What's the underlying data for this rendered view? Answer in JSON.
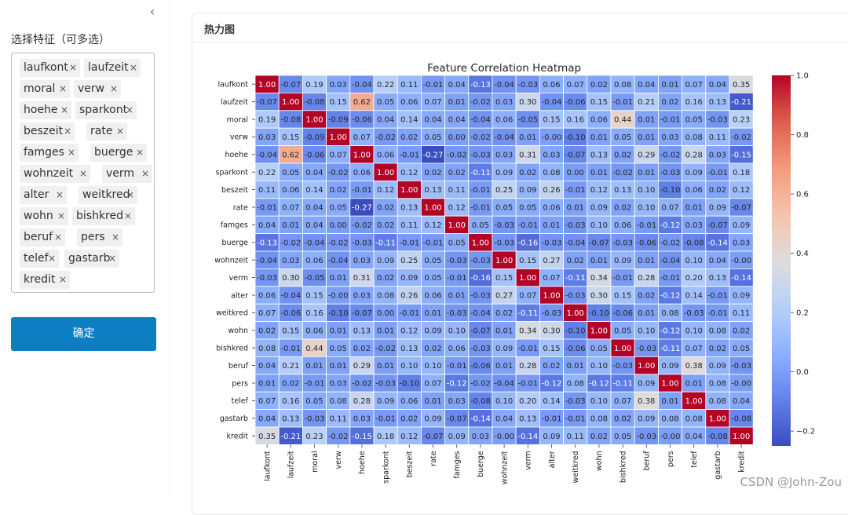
{
  "sidebar": {
    "label": "选择特征（可多选）",
    "tags": [
      "laufkont",
      "laufzeit",
      "moral",
      "verw",
      "hoehe",
      "sparkont",
      "beszeit",
      "rate",
      "famges",
      "buerge",
      "wohnzeit",
      "verm",
      "alter",
      "weitkred",
      "wohn",
      "bishkred",
      "beruf",
      "pers",
      "telef",
      "gastarb",
      "kredit"
    ],
    "remove_glyph": "×",
    "confirm_label": "确定",
    "collapse_glyph": "‹"
  },
  "card": {
    "title": "热力图"
  },
  "watermark": "CSDN @John-Zou",
  "chart_data": {
    "type": "heatmap",
    "title": "Feature Correlation Heatmap",
    "labels": [
      "laufkont",
      "laufzeit",
      "moral",
      "verw",
      "hoehe",
      "sparkont",
      "beszeit",
      "rate",
      "famges",
      "buerge",
      "wohnzeit",
      "verm",
      "alter",
      "weitkred",
      "wohn",
      "bishkred",
      "beruf",
      "pers",
      "telef",
      "gastarb",
      "kredit"
    ],
    "values": [
      [
        "1.00",
        "-0.07",
        "0.19",
        "0.03",
        "-0.04",
        "0.22",
        "0.11",
        "-0.01",
        "0.04",
        "-0.13",
        "-0.04",
        "-0.03",
        "0.06",
        "0.07",
        "0.02",
        "0.08",
        "0.04",
        "0.01",
        "0.07",
        "0.04",
        "0.35"
      ],
      [
        "-0.07",
        "1.00",
        "-0.08",
        "0.15",
        "0.62",
        "0.05",
        "0.06",
        "0.07",
        "0.01",
        "-0.02",
        "0.03",
        "0.30",
        "-0.04",
        "-0.06",
        "0.15",
        "-0.01",
        "0.21",
        "0.02",
        "0.16",
        "0.13",
        "-0.21"
      ],
      [
        "0.19",
        "-0.08",
        "1.00",
        "-0.09",
        "-0.06",
        "0.04",
        "0.14",
        "0.04",
        "0.04",
        "-0.04",
        "0.06",
        "-0.05",
        "0.15",
        "0.16",
        "0.06",
        "0.44",
        "0.01",
        "-0.01",
        "0.05",
        "-0.03",
        "0.23"
      ],
      [
        "0.03",
        "0.15",
        "-0.09",
        "1.00",
        "0.07",
        "-0.02",
        "0.02",
        "0.05",
        "0.00",
        "-0.02",
        "-0.04",
        "0.01",
        "-0.00",
        "-0.10",
        "0.01",
        "0.05",
        "0.01",
        "0.03",
        "0.08",
        "0.11",
        "-0.02"
      ],
      [
        "-0.04",
        "0.62",
        "-0.06",
        "0.07",
        "1.00",
        "0.06",
        "-0.01",
        "-0.27",
        "-0.02",
        "-0.03",
        "0.03",
        "0.31",
        "0.03",
        "-0.07",
        "0.13",
        "0.02",
        "0.29",
        "-0.02",
        "0.28",
        "0.03",
        "-0.15"
      ],
      [
        "0.22",
        "0.05",
        "0.04",
        "-0.02",
        "0.06",
        "1.00",
        "0.12",
        "0.02",
        "0.02",
        "-0.11",
        "0.09",
        "0.02",
        "0.08",
        "0.00",
        "0.01",
        "-0.02",
        "0.01",
        "-0.03",
        "0.09",
        "-0.01",
        "0.18"
      ],
      [
        "0.11",
        "0.06",
        "0.14",
        "0.02",
        "-0.01",
        "0.12",
        "1.00",
        "0.13",
        "0.11",
        "-0.01",
        "0.25",
        "0.09",
        "0.26",
        "-0.01",
        "0.12",
        "0.13",
        "0.10",
        "-0.10",
        "0.06",
        "0.02",
        "0.12"
      ],
      [
        "-0.01",
        "0.07",
        "0.04",
        "0.05",
        "-0.27",
        "0.02",
        "0.13",
        "1.00",
        "0.12",
        "-0.01",
        "0.05",
        "0.05",
        "0.06",
        "0.01",
        "0.09",
        "0.02",
        "0.10",
        "0.07",
        "0.01",
        "0.09",
        "-0.07"
      ],
      [
        "0.04",
        "0.01",
        "0.04",
        "0.00",
        "-0.02",
        "0.02",
        "0.11",
        "0.12",
        "1.00",
        "0.05",
        "-0.03",
        "-0.01",
        "0.01",
        "-0.03",
        "0.10",
        "0.06",
        "-0.01",
        "-0.12",
        "0.03",
        "-0.07",
        "0.09"
      ],
      [
        "-0.13",
        "-0.02",
        "-0.04",
        "-0.02",
        "-0.03",
        "-0.11",
        "-0.01",
        "-0.01",
        "0.05",
        "1.00",
        "-0.03",
        "-0.16",
        "-0.03",
        "-0.04",
        "-0.07",
        "-0.03",
        "-0.06",
        "-0.02",
        "-0.08",
        "-0.14",
        "0.03"
      ],
      [
        "-0.04",
        "0.03",
        "0.06",
        "-0.04",
        "0.03",
        "0.09",
        "0.25",
        "0.05",
        "-0.03",
        "-0.03",
        "1.00",
        "0.15",
        "0.27",
        "0.02",
        "0.01",
        "0.09",
        "0.01",
        "-0.04",
        "0.10",
        "0.04",
        "-0.00"
      ],
      [
        "-0.03",
        "0.30",
        "-0.05",
        "0.01",
        "0.31",
        "0.02",
        "0.09",
        "0.05",
        "-0.01",
        "-0.16",
        "0.15",
        "1.00",
        "0.07",
        "-0.11",
        "0.34",
        "-0.01",
        "0.28",
        "-0.01",
        "0.20",
        "0.13",
        "-0.14"
      ],
      [
        "0.06",
        "-0.04",
        "0.15",
        "-0.00",
        "0.03",
        "0.08",
        "0.26",
        "0.06",
        "0.01",
        "-0.03",
        "0.27",
        "0.07",
        "1.00",
        "-0.03",
        "0.30",
        "0.15",
        "0.02",
        "-0.12",
        "0.14",
        "-0.01",
        "0.09"
      ],
      [
        "0.07",
        "-0.06",
        "0.16",
        "-0.10",
        "-0.07",
        "0.00",
        "-0.01",
        "0.01",
        "-0.03",
        "-0.04",
        "0.02",
        "-0.11",
        "-0.03",
        "1.00",
        "-0.10",
        "-0.06",
        "0.01",
        "0.08",
        "-0.03",
        "-0.01",
        "0.11"
      ],
      [
        "0.02",
        "0.15",
        "0.06",
        "0.01",
        "0.13",
        "0.01",
        "0.12",
        "0.09",
        "0.10",
        "-0.07",
        "0.01",
        "0.34",
        "0.30",
        "-0.10",
        "1.00",
        "0.05",
        "0.10",
        "-0.12",
        "0.10",
        "0.08",
        "0.02"
      ],
      [
        "0.08",
        "-0.01",
        "0.44",
        "0.05",
        "0.02",
        "-0.02",
        "0.13",
        "0.02",
        "0.06",
        "-0.03",
        "0.09",
        "-0.01",
        "0.15",
        "-0.06",
        "0.05",
        "1.00",
        "-0.03",
        "-0.11",
        "0.07",
        "0.02",
        "0.05"
      ],
      [
        "0.04",
        "0.21",
        "0.01",
        "0.01",
        "0.29",
        "0.01",
        "0.10",
        "0.10",
        "-0.01",
        "-0.06",
        "0.01",
        "0.28",
        "0.02",
        "0.01",
        "0.10",
        "-0.03",
        "1.00",
        "0.09",
        "0.38",
        "0.09",
        "-0.03"
      ],
      [
        "0.01",
        "0.02",
        "-0.01",
        "0.03",
        "-0.02",
        "-0.03",
        "-0.10",
        "0.07",
        "-0.12",
        "-0.02",
        "-0.04",
        "-0.01",
        "-0.12",
        "0.08",
        "-0.12",
        "-0.11",
        "0.09",
        "1.00",
        "0.01",
        "0.08",
        "-0.00"
      ],
      [
        "0.07",
        "0.16",
        "0.05",
        "0.08",
        "0.28",
        "0.09",
        "0.06",
        "0.01",
        "0.03",
        "-0.08",
        "0.10",
        "0.20",
        "0.14",
        "-0.03",
        "0.10",
        "0.07",
        "0.38",
        "0.01",
        "1.00",
        "0.08",
        "0.04"
      ],
      [
        "0.04",
        "0.13",
        "-0.03",
        "0.11",
        "0.03",
        "-0.01",
        "0.02",
        "0.09",
        "-0.07",
        "-0.14",
        "0.04",
        "0.13",
        "-0.01",
        "-0.01",
        "0.08",
        "0.02",
        "0.09",
        "0.08",
        "0.08",
        "1.00",
        "-0.08"
      ],
      [
        "0.35",
        "-0.21",
        "0.23",
        "-0.02",
        "-0.15",
        "0.18",
        "0.12",
        "-0.07",
        "0.09",
        "0.03",
        "-0.00",
        "-0.14",
        "0.09",
        "0.11",
        "0.02",
        "0.05",
        "-0.03",
        "-0.00",
        "0.04",
        "-0.08",
        "1.00"
      ]
    ],
    "colorbar": {
      "min": -0.25,
      "max": 1.0,
      "ticks": [
        "1.0",
        "0.8",
        "0.6",
        "0.4",
        "0.2",
        "0.0",
        "-0.2"
      ]
    },
    "colormap": "coolwarm"
  }
}
